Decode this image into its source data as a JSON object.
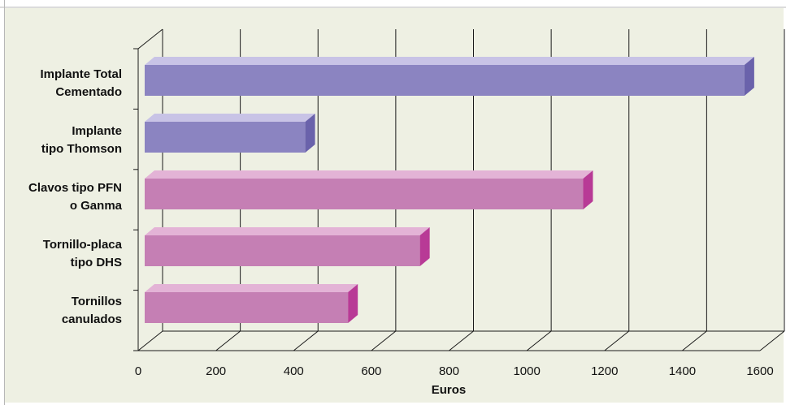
{
  "chart_data": {
    "type": "bar",
    "orientation": "horizontal",
    "style": "3d",
    "title": "",
    "xlabel": "Euros",
    "ylabel": "",
    "xlim": [
      0,
      1600
    ],
    "xticks": [
      "0",
      "200",
      "400",
      "600",
      "800",
      "1000",
      "1200",
      "1400",
      "1600"
    ],
    "grid": true,
    "categories": [
      [
        "Implante Total",
        "Cementado"
      ],
      [
        "Implante",
        "tipo Thomson"
      ],
      [
        "Clavos tipo PFN",
        "o Ganma"
      ],
      [
        "Tornillo-placa",
        "tipo DHS"
      ],
      [
        "Tornillos",
        "canulados"
      ]
    ],
    "values": [
      1560,
      430,
      1145,
      725,
      540
    ],
    "bar_colors": [
      "#8b84c1",
      "#8b84c1",
      "#c57fb4",
      "#c57fb4",
      "#c57fb4"
    ]
  },
  "colors": {
    "background": "#eef0e3",
    "frame": "#b7b7b7",
    "grid": "#1a1a1a",
    "purple_top": "#c8c3e6",
    "purple_side": "#6a62ab",
    "pink_top": "#e3b3d6",
    "pink_side": "#b83a96"
  }
}
